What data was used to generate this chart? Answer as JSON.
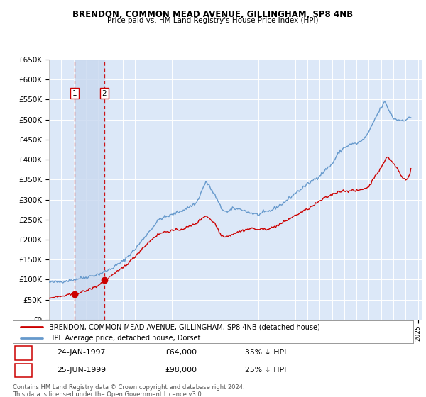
{
  "title": "BRENDON, COMMON MEAD AVENUE, GILLINGHAM, SP8 4NB",
  "subtitle": "Price paid vs. HM Land Registry's House Price Index (HPI)",
  "legend_line1": "BRENDON, COMMON MEAD AVENUE, GILLINGHAM, SP8 4NB (detached house)",
  "legend_line2": "HPI: Average price, detached house, Dorset",
  "footer": "Contains HM Land Registry data © Crown copyright and database right 2024.\nThis data is licensed under the Open Government Licence v3.0.",
  "purchases": [
    {
      "num": 1,
      "date": "24-JAN-1997",
      "price": 64000,
      "pct": "35%",
      "x": 1997.07
    },
    {
      "num": 2,
      "date": "25-JUN-1999",
      "price": 98000,
      "pct": "25%",
      "x": 1999.5
    }
  ],
  "ylim": [
    0,
    650000
  ],
  "xlim": [
    1995.0,
    2025.3
  ],
  "sale_color": "#cc0000",
  "hpi_color": "#6699cc",
  "bg_color": "#dce8f8",
  "span_color": "#d0dff5",
  "grid_color": "#ffffff"
}
